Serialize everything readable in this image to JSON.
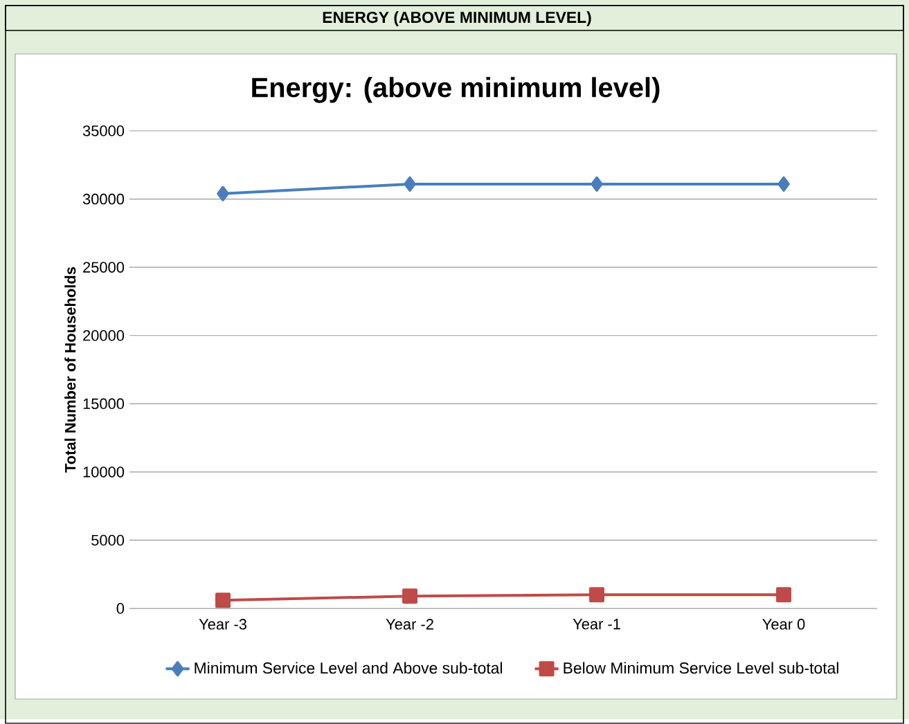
{
  "chart_data": {
    "type": "line",
    "title": "ENERGY (ABOVE MINIMUM LEVEL)",
    "subtitle": "Energy: (above minimum level)",
    "ylabel": "Total Number of Households",
    "categories": [
      "Year -3",
      "Year -2",
      "Year -1",
      "Year 0"
    ],
    "series": [
      {
        "name": "Minimum Service Level and Above sub-total",
        "color": "#4a7ebb",
        "marker": "diamond",
        "values": [
          30400,
          31100,
          31100,
          31100
        ]
      },
      {
        "name": "Below Minimum Service Level sub-total",
        "color": "#be4b48",
        "marker": "square",
        "values": [
          600,
          900,
          1000,
          1000
        ]
      }
    ],
    "ylim": [
      0,
      35000
    ],
    "yticks": [
      0,
      5000,
      10000,
      15000,
      20000,
      25000,
      30000,
      35000
    ],
    "grid": "y",
    "legend": "bottom",
    "line_style": "solid"
  }
}
